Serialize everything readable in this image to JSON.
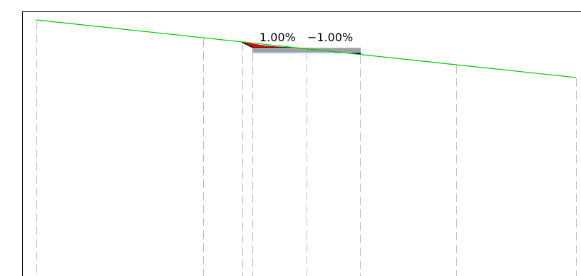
{
  "labels": {
    "slope_left": "1.00%",
    "slope_right": "−1.00%"
  },
  "colors": {
    "background": "#ffffff",
    "frame": "#000000",
    "guide_lines": "#bdbdbd",
    "ground_line": "#00c800",
    "cut_fill": "#e60000",
    "pavement": "#a0a0a0",
    "subgrade": "#8ab0d8",
    "text": "#000000"
  }
}
